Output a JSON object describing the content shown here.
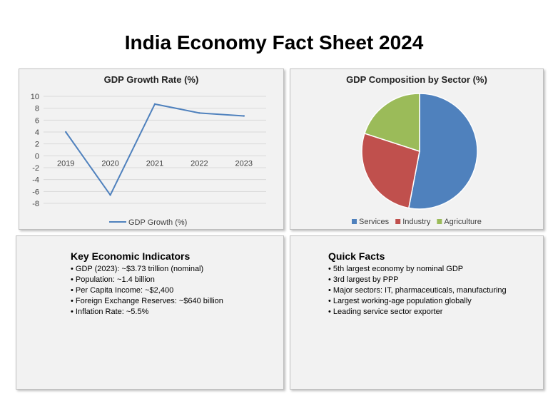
{
  "title": "India Economy Fact Sheet 2024",
  "chart_data": [
    {
      "type": "line",
      "title": "GDP Growth Rate (%)",
      "categories": [
        "2019",
        "2020",
        "2021",
        "2022",
        "2023"
      ],
      "series": [
        {
          "name": "GDP Growth (%)",
          "values": [
            4.0,
            -6.6,
            8.7,
            7.2,
            6.7
          ],
          "color": "#4f81bd"
        }
      ],
      "ylim": [
        -8,
        10
      ],
      "yticks": [
        "10",
        "8",
        "6",
        "4",
        "2",
        "0",
        "-2",
        "-4",
        "-6",
        "-8"
      ],
      "grid": true,
      "legend": "bottom"
    },
    {
      "type": "pie",
      "title": "GDP Composition by Sector (%)",
      "slices": [
        {
          "label": "Services",
          "value": 53,
          "color": "#4f81bd"
        },
        {
          "label": "Industry",
          "value": 27,
          "color": "#c0504d"
        },
        {
          "label": "Agriculture",
          "value": 20,
          "color": "#9bbb59"
        }
      ],
      "legend": "bottom"
    }
  ],
  "indicators": {
    "heading": "Key Economic Indicators",
    "items": [
      "GDP (2023): ~$3.73 trillion (nominal)",
      "Population: ~1.4 billion",
      "Per Capita Income: ~$2,400",
      "Foreign Exchange Reserves: ~$640 billion",
      "Inflation Rate: ~5.5%"
    ]
  },
  "facts": {
    "heading": "Quick Facts",
    "items": [
      "5th largest economy by nominal GDP",
      "3rd largest by PPP",
      "Major sectors: IT, pharmaceuticals, manufacturing",
      "Largest working-age population globally",
      "Leading service sector exporter"
    ]
  }
}
